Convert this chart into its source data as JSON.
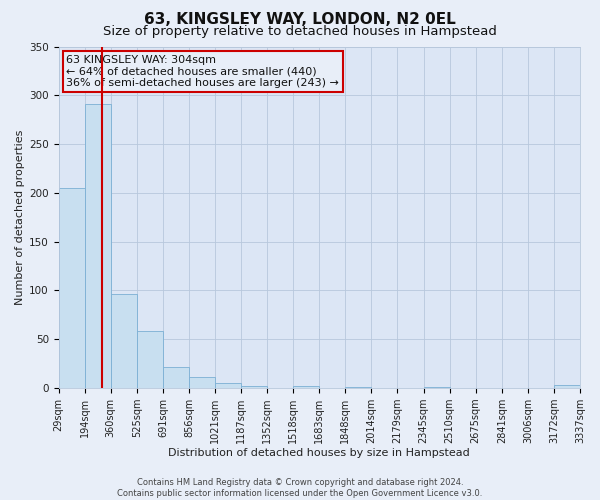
{
  "title": "63, KINGSLEY WAY, LONDON, N2 0EL",
  "subtitle": "Size of property relative to detached houses in Hampstead",
  "xlabel": "Distribution of detached houses by size in Hampstead",
  "ylabel": "Number of detached properties",
  "bar_edges": [
    29,
    194,
    360,
    525,
    691,
    856,
    1021,
    1187,
    1352,
    1518,
    1683,
    1848,
    2014,
    2179,
    2345,
    2510,
    2675,
    2841,
    3006,
    3172,
    3337
  ],
  "bar_heights": [
    205,
    291,
    96,
    58,
    21,
    11,
    5,
    2,
    0,
    2,
    0,
    1,
    0,
    0,
    1,
    0,
    0,
    0,
    0,
    3
  ],
  "bar_color": "#c8dff0",
  "bar_edge_color": "#7bafd4",
  "vline_x": 304,
  "vline_color": "#cc0000",
  "annotation_title": "63 KINGSLEY WAY: 304sqm",
  "annotation_line1": "← 64% of detached houses are smaller (440)",
  "annotation_line2": "36% of semi-detached houses are larger (243) →",
  "annotation_box_color": "#cc0000",
  "tick_labels": [
    "29sqm",
    "194sqm",
    "360sqm",
    "525sqm",
    "691sqm",
    "856sqm",
    "1021sqm",
    "1187sqm",
    "1352sqm",
    "1518sqm",
    "1683sqm",
    "1848sqm",
    "2014sqm",
    "2179sqm",
    "2345sqm",
    "2510sqm",
    "2675sqm",
    "2841sqm",
    "3006sqm",
    "3172sqm",
    "3337sqm"
  ],
  "ylim": [
    0,
    350
  ],
  "yticks": [
    0,
    50,
    100,
    150,
    200,
    250,
    300,
    350
  ],
  "footer_line1": "Contains HM Land Registry data © Crown copyright and database right 2024.",
  "footer_line2": "Contains public sector information licensed under the Open Government Licence v3.0.",
  "bg_color": "#e8eef8",
  "plot_bg_color": "#dce6f5",
  "grid_color": "#b8c8dc",
  "title_fontsize": 11,
  "subtitle_fontsize": 9.5,
  "axis_label_fontsize": 8,
  "tick_fontsize": 7,
  "annotation_fontsize": 8,
  "footer_fontsize": 6
}
